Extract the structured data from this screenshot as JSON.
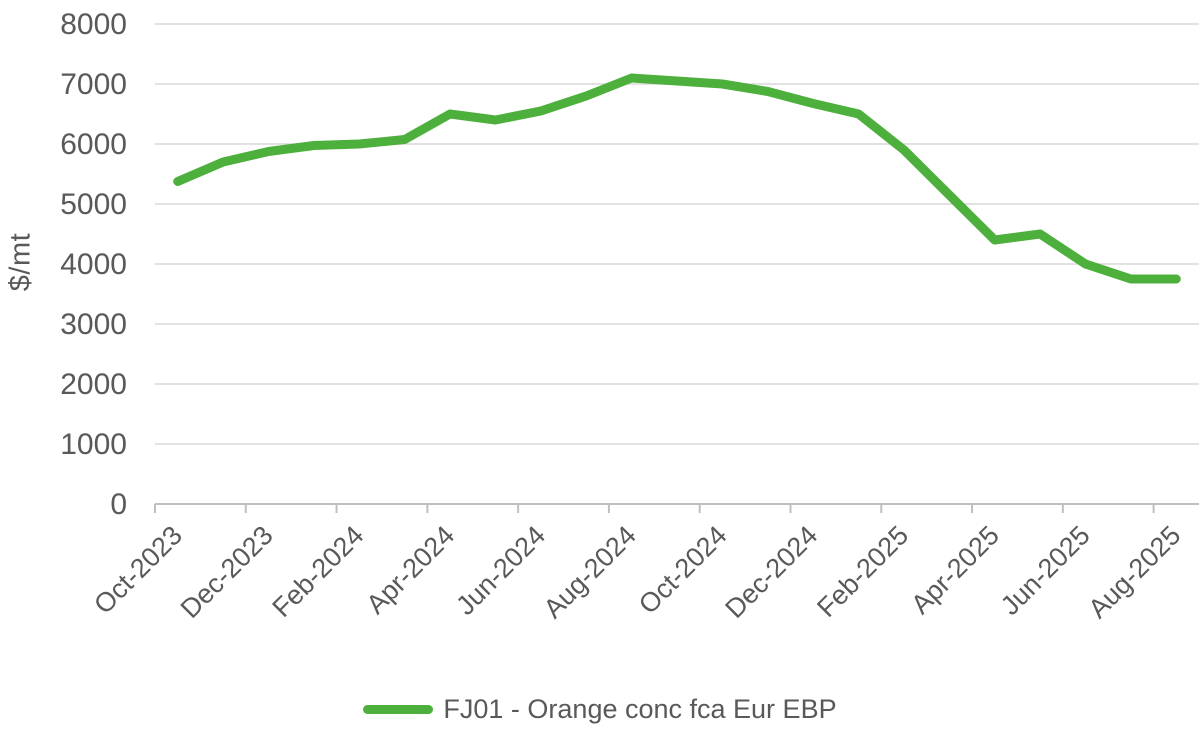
{
  "chart_data": {
    "type": "line",
    "title": "",
    "xlabel": "",
    "ylabel": "$/mt",
    "x": [
      "Oct-2023",
      "Nov-2023",
      "Dec-2023",
      "Jan-2024",
      "Feb-2024",
      "Mar-2024",
      "Apr-2024",
      "May-2024",
      "Jun-2024",
      "Jul-2024",
      "Aug-2024",
      "Sep-2024",
      "Oct-2024",
      "Nov-2024",
      "Dec-2024",
      "Jan-2025",
      "Feb-2025",
      "Mar-2025",
      "Apr-2025",
      "May-2025",
      "Jun-2025",
      "Jul-2025",
      "Aug-2025"
    ],
    "series": [
      {
        "name": "FJ01 - Orange conc fca Eur EBP",
        "color": "#4DAF3C",
        "values": [
          5375,
          5700,
          5875,
          5975,
          6000,
          6075,
          6500,
          6400,
          6550,
          6800,
          7100,
          7050,
          7000,
          6875,
          6675,
          6500,
          5900,
          5150,
          4400,
          4500,
          4000,
          3750,
          3750
        ]
      }
    ],
    "ylim": [
      0,
      8000
    ],
    "yticks": [
      0,
      1000,
      2000,
      3000,
      4000,
      5000,
      6000,
      7000,
      8000
    ],
    "xtick_labels": [
      "Oct-2023",
      "Dec-2023",
      "Feb-2024",
      "Apr-2024",
      "Jun-2024",
      "Aug-2024",
      "Oct-2024",
      "Dec-2024",
      "Feb-2025",
      "Apr-2025",
      "Jun-2025",
      "Aug-2025"
    ],
    "grid": "horizontal",
    "legend_position": "bottom"
  },
  "colors": {
    "line": "#4DAF3C",
    "grid": "#D9D9D9",
    "axis": "#BFBFBF",
    "text": "#595959",
    "background": "#FFFFFF"
  },
  "legend": {
    "label": "FJ01 - Orange conc fca Eur EBP"
  },
  "y_axis": {
    "title": "$/mt"
  }
}
